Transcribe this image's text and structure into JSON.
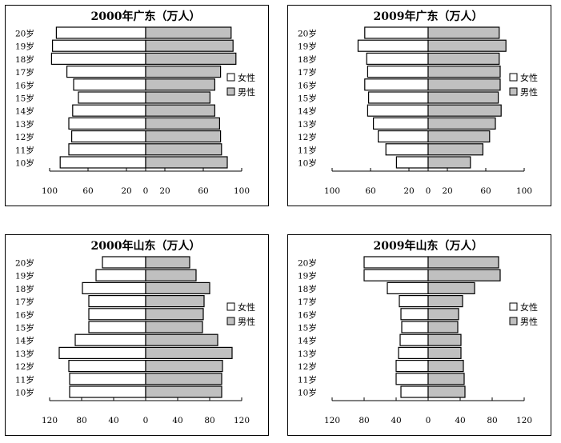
{
  "legend": {
    "female": "女性",
    "male": "男性"
  },
  "colors": {
    "female": "#ffffff",
    "male": "#c0c0c0",
    "stroke": "#000000"
  },
  "chart_data": [
    {
      "type": "bar",
      "subtype": "population-pyramid",
      "title": "2000年广东（万人）",
      "categories": [
        "10岁",
        "11岁",
        "12岁",
        "13岁",
        "14岁",
        "15岁",
        "16岁",
        "17岁",
        "18岁",
        "19岁",
        "20岁"
      ],
      "series": [
        {
          "name": "女性",
          "side": "left",
          "values": [
            89,
            80,
            77,
            80,
            76,
            70,
            75,
            82,
            98,
            97,
            93
          ]
        },
        {
          "name": "男性",
          "side": "right",
          "values": [
            85,
            79,
            78,
            77,
            72,
            67,
            72,
            78,
            94,
            91,
            89
          ]
        }
      ],
      "ticks": [
        {
          "label": "100",
          "value": -100
        },
        {
          "label": "60",
          "value": -60
        },
        {
          "label": "20",
          "value": -20
        },
        {
          "label": "0",
          "value": 0
        },
        {
          "label": "20",
          "value": 20
        },
        {
          "label": "60",
          "value": 60
        },
        {
          "label": "100",
          "value": 100
        }
      ],
      "xlim": [
        -100,
        100
      ]
    },
    {
      "type": "bar",
      "subtype": "population-pyramid",
      "title": "2009年广东（万人）",
      "categories": [
        "10岁",
        "11岁",
        "12岁",
        "13岁",
        "14岁",
        "15岁",
        "16岁",
        "17岁",
        "18岁",
        "19岁",
        "20岁"
      ],
      "series": [
        {
          "name": "女性",
          "side": "left",
          "values": [
            33,
            44,
            52,
            57,
            63,
            62,
            66,
            63,
            64,
            73,
            66
          ]
        },
        {
          "name": "男性",
          "side": "right",
          "values": [
            44,
            57,
            64,
            70,
            76,
            73,
            75,
            75,
            74,
            81,
            74
          ]
        }
      ],
      "ticks": [
        {
          "label": "100",
          "value": -100
        },
        {
          "label": "60",
          "value": -60
        },
        {
          "label": "20",
          "value": -20
        },
        {
          "label": "0",
          "value": 0
        },
        {
          "label": "20",
          "value": 20
        },
        {
          "label": "60",
          "value": 60
        },
        {
          "label": "100",
          "value": 100
        }
      ],
      "xlim": [
        -100,
        100
      ]
    },
    {
      "type": "bar",
      "subtype": "population-pyramid",
      "title": "2000年山东（万人）",
      "categories": [
        "10岁",
        "11岁",
        "12岁",
        "13岁",
        "14岁",
        "15岁",
        "16岁",
        "17岁",
        "18岁",
        "19岁",
        "20岁"
      ],
      "series": [
        {
          "name": "女性",
          "side": "left",
          "values": [
            95,
            95,
            96,
            108,
            88,
            71,
            71,
            71,
            79,
            62,
            54
          ]
        },
        {
          "name": "男性",
          "side": "right",
          "values": [
            95,
            95,
            96,
            108,
            90,
            71,
            72,
            73,
            80,
            63,
            55
          ]
        }
      ],
      "ticks": [
        {
          "label": "120",
          "value": -120
        },
        {
          "label": "80",
          "value": -80
        },
        {
          "label": "40",
          "value": -40
        },
        {
          "label": "0",
          "value": 0
        },
        {
          "label": "40",
          "value": 40
        },
        {
          "label": "80",
          "value": 80
        },
        {
          "label": "120",
          "value": 120
        }
      ],
      "xlim": [
        -120,
        120
      ]
    },
    {
      "type": "bar",
      "subtype": "population-pyramid",
      "title": "2009年山东（万人）",
      "categories": [
        "10岁",
        "11岁",
        "12岁",
        "13岁",
        "14岁",
        "15岁",
        "16岁",
        "17岁",
        "18岁",
        "19岁",
        "20岁"
      ],
      "series": [
        {
          "name": "女性",
          "side": "left",
          "values": [
            34,
            40,
            40,
            37,
            35,
            33,
            34,
            36,
            51,
            80,
            80
          ]
        },
        {
          "name": "男性",
          "side": "right",
          "values": [
            46,
            45,
            44,
            41,
            41,
            37,
            38,
            43,
            58,
            90,
            88
          ]
        }
      ],
      "ticks": [
        {
          "label": "120",
          "value": -120
        },
        {
          "label": "80",
          "value": -80
        },
        {
          "label": "40",
          "value": -40
        },
        {
          "label": "0",
          "value": 0
        },
        {
          "label": "40",
          "value": 40
        },
        {
          "label": "80",
          "value": 80
        },
        {
          "label": "120",
          "value": 120
        }
      ],
      "xlim": [
        -120,
        120
      ]
    }
  ]
}
